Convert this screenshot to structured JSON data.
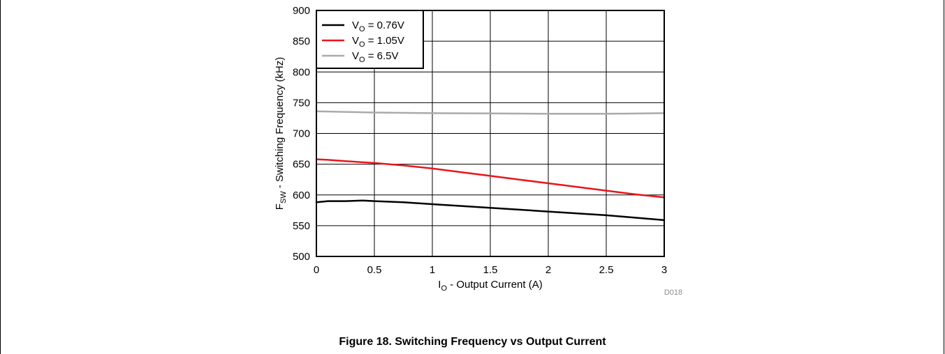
{
  "caption": "Figure 18. Switching Frequency vs Output Current",
  "figure_id": "D018",
  "chart_data": {
    "type": "line",
    "xlabel": {
      "main": "I",
      "sub": "O",
      "rest": " - Output Current (A)"
    },
    "ylabel": {
      "main": "F",
      "sub": "SW",
      "rest": " - Switching Frequency (kHz)"
    },
    "xlim": [
      0,
      3
    ],
    "ylim": [
      500,
      900
    ],
    "x_ticks": [
      "0",
      "0.5",
      "1",
      "1.5",
      "2",
      "2.5",
      "3"
    ],
    "y_ticks": [
      "500",
      "550",
      "600",
      "650",
      "700",
      "750",
      "800",
      "850",
      "900"
    ],
    "grid": true,
    "legend_position": "top-left",
    "series": [
      {
        "name": {
          "main": "V",
          "sub": "O",
          "rest": " = 0.76V"
        },
        "color": "#000000",
        "x": [
          0,
          0.1,
          0.25,
          0.4,
          0.5,
          0.75,
          1,
          1.25,
          1.5,
          1.75,
          2,
          2.25,
          2.5,
          2.75,
          3
        ],
        "y": [
          588,
          590,
          590,
          591,
          590,
          588,
          585,
          582,
          579,
          576,
          573,
          570,
          567,
          563,
          559
        ]
      },
      {
        "name": {
          "main": "V",
          "sub": "O",
          "rest": " = 1.05V"
        },
        "color": "#e8161c",
        "x": [
          0,
          0.1,
          0.25,
          0.5,
          0.75,
          1,
          1.25,
          1.5,
          1.75,
          2,
          2.25,
          2.5,
          2.75,
          3
        ],
        "y": [
          658,
          657,
          655,
          652,
          648,
          643,
          637,
          631,
          625,
          619,
          613,
          607,
          601,
          596
        ]
      },
      {
        "name": {
          "main": "V",
          "sub": "O",
          "rest": " = 6.5V"
        },
        "color": "#aaaaaa",
        "x": [
          0,
          0.25,
          0.5,
          1,
          1.5,
          2,
          2.25,
          2.5,
          3
        ],
        "y": [
          736,
          735,
          734,
          733,
          732.5,
          732,
          732,
          732,
          733
        ]
      }
    ]
  }
}
